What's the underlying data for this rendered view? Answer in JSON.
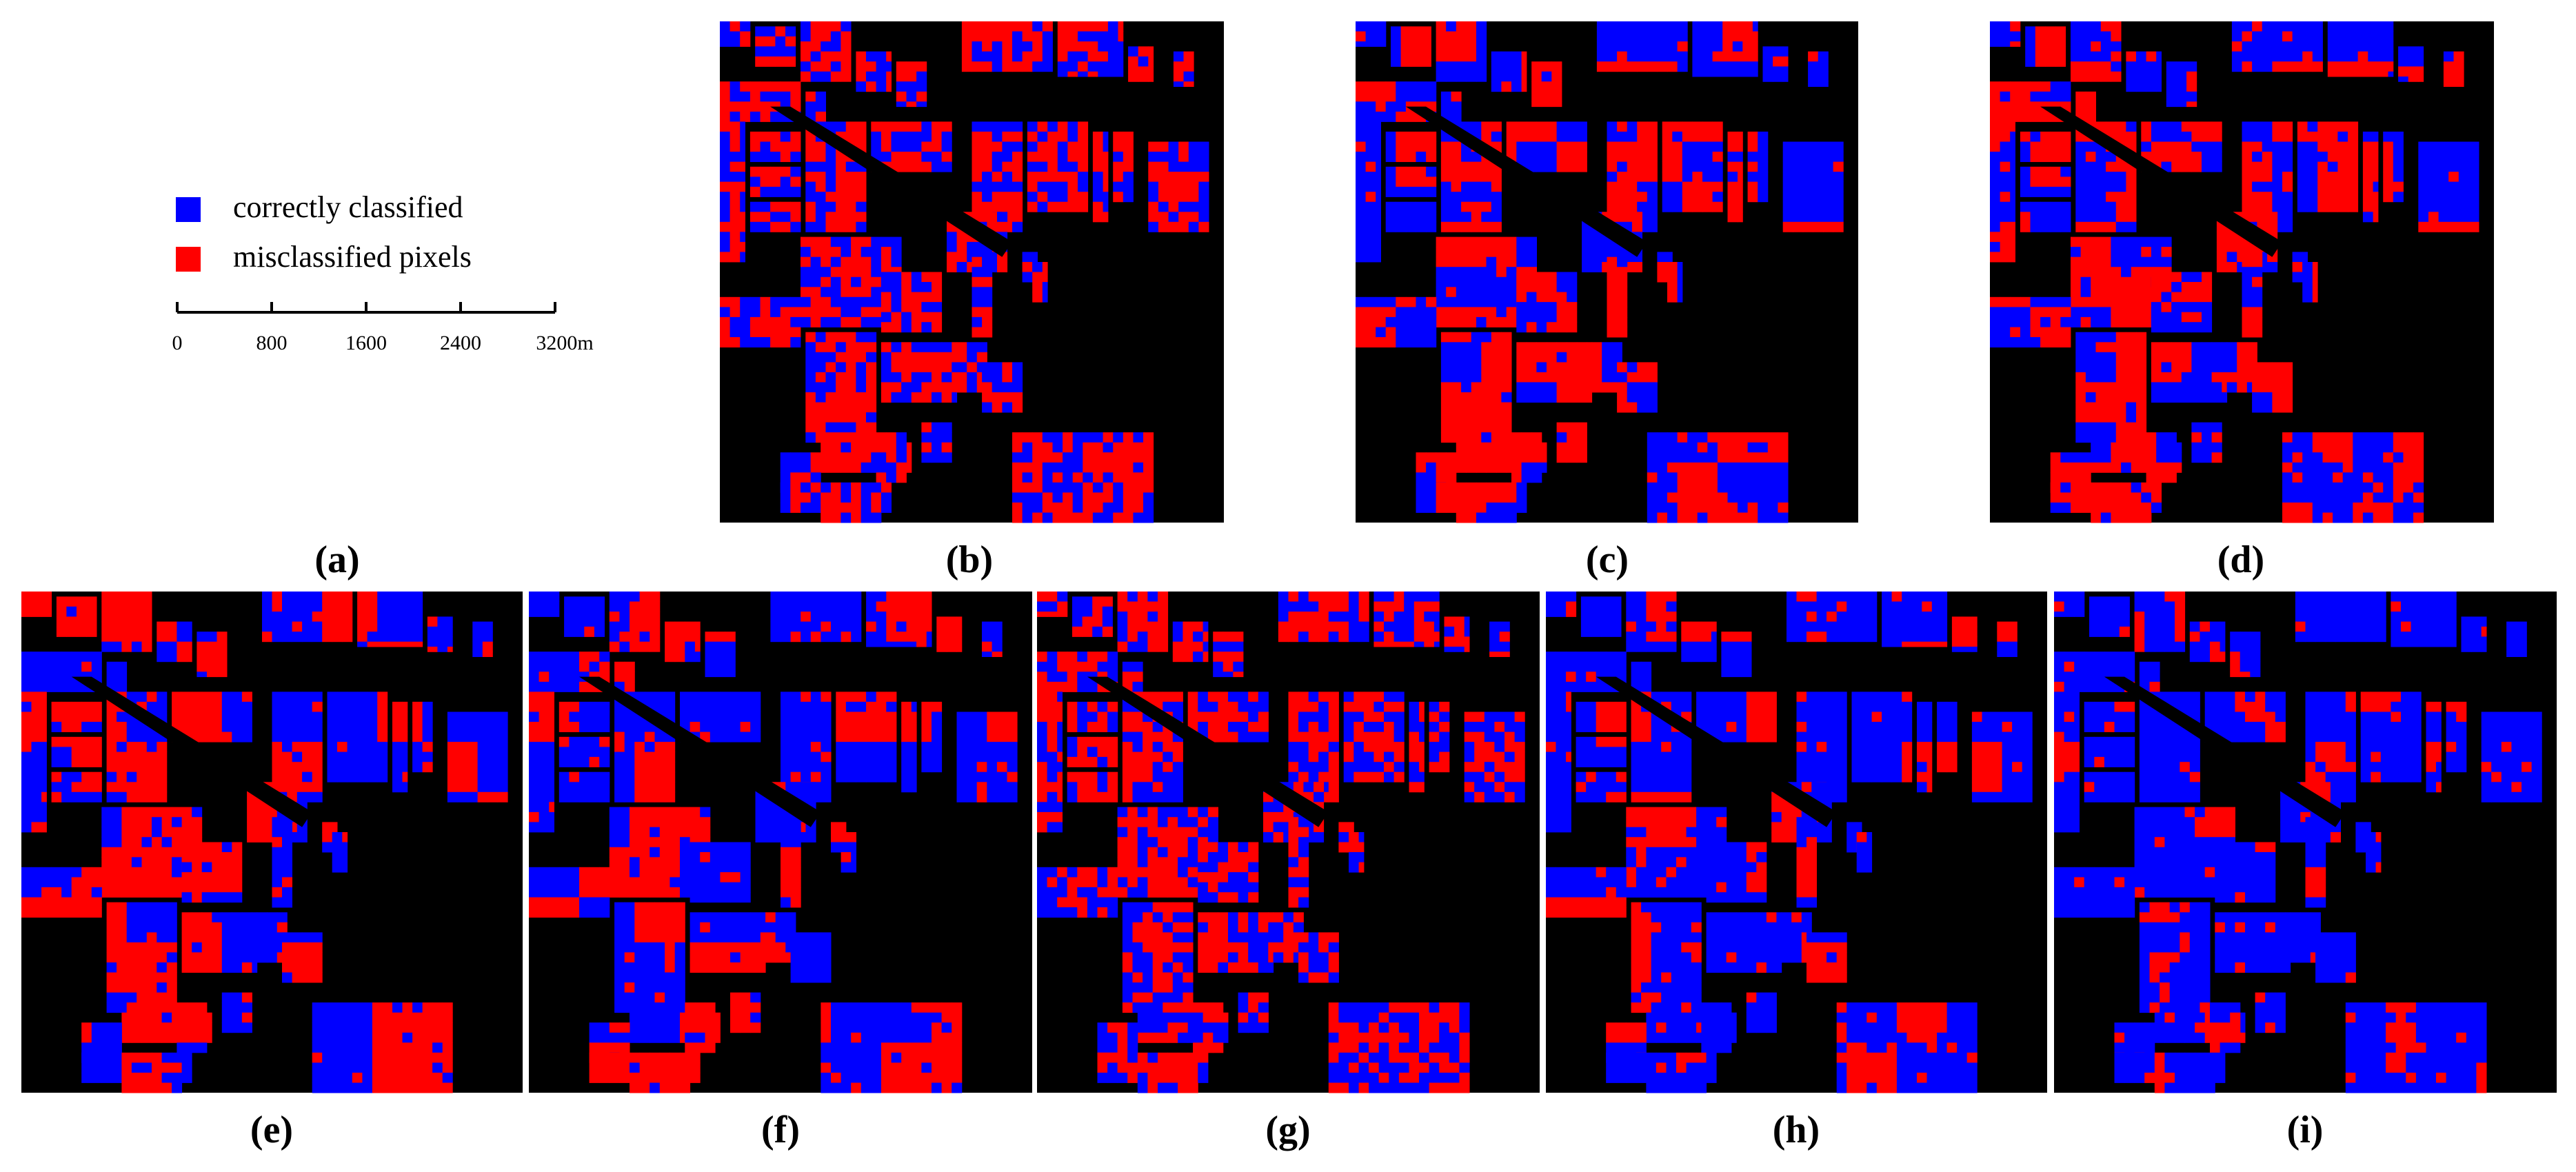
{
  "legend": {
    "items": [
      {
        "label": "correctly classified",
        "color": "#0000ff"
      },
      {
        "label": "misclassified pixels",
        "color": "#ff0000"
      }
    ]
  },
  "scale_bar": {
    "ticks": [
      "0",
      "800",
      "1600",
      "2400",
      "3200m"
    ]
  },
  "panels": [
    {
      "label": "(a)"
    },
    {
      "label": "(b)"
    },
    {
      "label": "(c)"
    },
    {
      "label": "(d)"
    },
    {
      "label": "(e)"
    },
    {
      "label": "(f)"
    },
    {
      "label": "(g)"
    },
    {
      "label": "(h)"
    },
    {
      "label": "(i)"
    }
  ]
}
